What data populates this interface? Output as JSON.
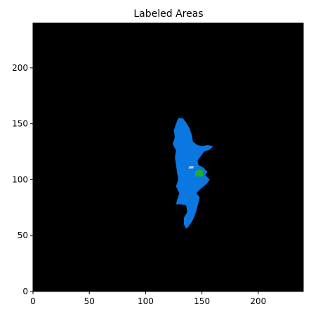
{
  "chart_data": {
    "type": "heatmap",
    "title": "Labeled Areas",
    "xlabel": "",
    "ylabel": "",
    "xlim": [
      0,
      240
    ],
    "ylim": [
      0,
      240
    ],
    "x_ticks": [
      "0",
      "50",
      "100",
      "150",
      "200"
    ],
    "y_ticks": [
      "0",
      "50",
      "100",
      "150",
      "200"
    ],
    "grid": false,
    "background_color": "#000000",
    "regions": [
      {
        "label": 1,
        "color": "#0a78e0",
        "outline": [
          [
            129,
            155
          ],
          [
            133,
            155
          ],
          [
            136,
            151
          ],
          [
            139,
            146
          ],
          [
            141,
            140
          ],
          [
            142,
            134
          ],
          [
            146,
            131
          ],
          [
            150,
            130
          ],
          [
            155,
            131
          ],
          [
            160,
            130
          ],
          [
            157,
            127
          ],
          [
            152,
            125
          ],
          [
            149,
            121
          ],
          [
            146,
            117
          ],
          [
            147,
            113
          ],
          [
            151,
            111
          ],
          [
            155,
            107
          ],
          [
            153,
            104
          ],
          [
            157,
            100
          ],
          [
            154,
            96
          ],
          [
            149,
            92
          ],
          [
            145,
            88
          ],
          [
            148,
            84
          ],
          [
            147,
            80
          ],
          [
            145,
            72
          ],
          [
            142,
            64
          ],
          [
            138,
            58
          ],
          [
            136,
            56
          ],
          [
            134,
            60
          ],
          [
            134,
            66
          ],
          [
            137,
            71
          ],
          [
            136,
            77
          ],
          [
            131,
            78
          ],
          [
            127,
            78
          ],
          [
            128,
            82
          ],
          [
            130,
            88
          ],
          [
            127,
            94
          ],
          [
            129,
            100
          ],
          [
            128,
            106
          ],
          [
            127,
            113
          ],
          [
            126,
            120
          ],
          [
            127,
            126
          ],
          [
            124,
            132
          ],
          [
            126,
            138
          ],
          [
            125,
            144
          ],
          [
            127,
            150
          ]
        ]
      },
      {
        "label": 2,
        "color": "#1fb01f",
        "outline": [
          [
            144,
            103
          ],
          [
            151,
            103
          ],
          [
            151,
            108
          ],
          [
            147,
            109
          ],
          [
            144,
            107
          ]
        ]
      },
      {
        "label": 3,
        "color": "#c8c8d8",
        "outline": [
          [
            138,
            110
          ],
          [
            142,
            110
          ],
          [
            143,
            112
          ],
          [
            139,
            112
          ]
        ]
      }
    ]
  }
}
